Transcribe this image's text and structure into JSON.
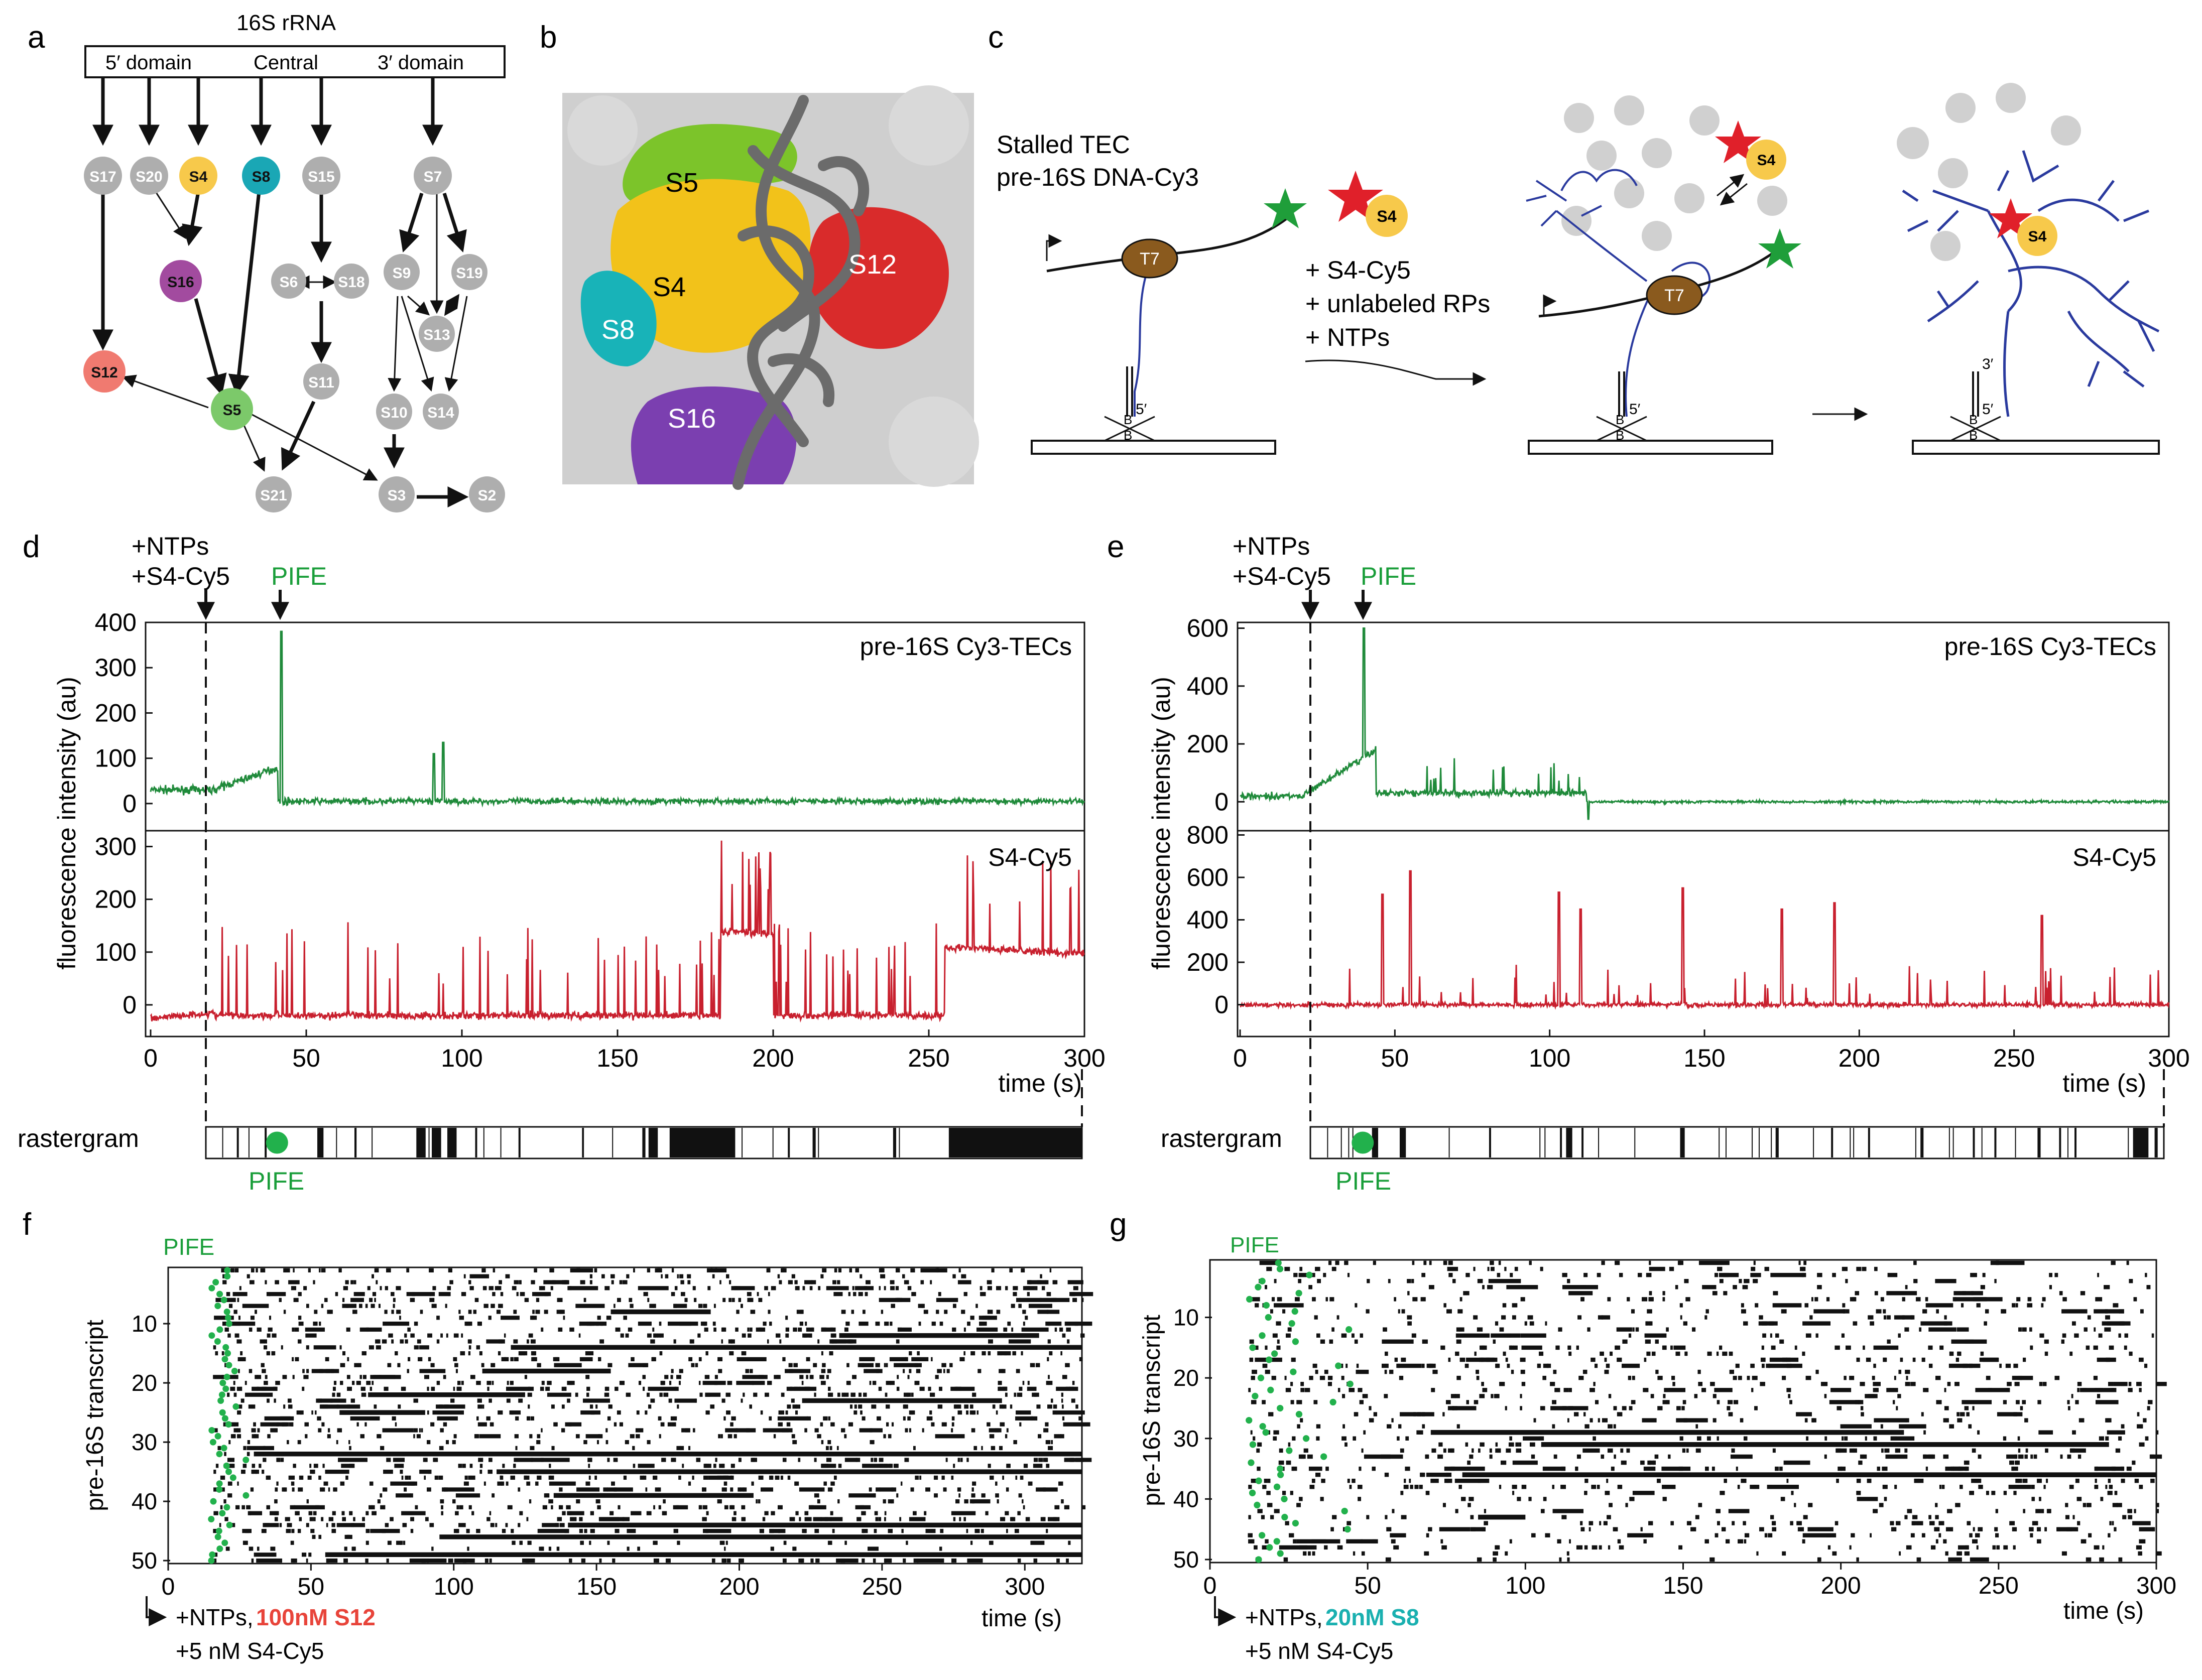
{
  "panel_letters": {
    "a": "a",
    "b": "b",
    "c": "c",
    "d": "d",
    "e": "e",
    "f": "f",
    "g": "g"
  },
  "panel_a": {
    "header": "16S rRNA",
    "domains": {
      "five": "5′ domain",
      "central": "Central",
      "three": "3′ domain"
    },
    "proteins": {
      "S17": "S17",
      "S20": "S20",
      "S4": "S4",
      "S8": "S8",
      "S15": "S15",
      "S7": "S7",
      "S16": "S16",
      "S6": "S6",
      "S18": "S18",
      "S9": "S9",
      "S19": "S19",
      "S13": "S13",
      "S12": "S12",
      "S5": "S5",
      "S11": "S11",
      "S10": "S10",
      "S14": "S14",
      "S21": "S21",
      "S3": "S3",
      "S2": "S2"
    },
    "colors": {
      "S4": "#f7c94b",
      "S8": "#1aa7b5",
      "S16": "#a24b9f",
      "S12": "#f07a70",
      "S5": "#7cc96a",
      "grey": "#aeaeae"
    }
  },
  "panel_b": {
    "labels": {
      "S5": "S5",
      "S4": "S4",
      "S8": "S8",
      "S12": "S12",
      "S16": "S16"
    },
    "colors": {
      "S5": "#7cc42a",
      "S4": "#f2c21a",
      "S8": "#18b3b8",
      "S12": "#d92b2b",
      "S16": "#7b3fb0",
      "rna": "#6b6b6b",
      "bg": "#cfcfcf"
    }
  },
  "panel_c": {
    "title1": "Stalled TEC",
    "title2": "pre-16S DNA-Cy3",
    "polymerase": "T7",
    "s4": "S4",
    "add1": "+ S4-Cy5",
    "add2": "+ unlabeled RPs",
    "add3": "+ NTPs",
    "five_prime": "5′",
    "three_prime": "3′",
    "biotin": "B",
    "colors": {
      "rna": "#2a3a9e",
      "star_green": "#1f9e3a",
      "star_red": "#e0202a",
      "polymerase": "#8a5a1e",
      "s4": "#f7c94b"
    }
  },
  "panel_d": {
    "arrow_label1": "+NTPs",
    "arrow_label2": "+S4-Cy5",
    "pife": "PIFE",
    "top_title": "pre-16S Cy3-TECs",
    "bottom_title": "S4-Cy5",
    "ylabel": "fluorescence intensity (au)",
    "xlabel": "time (s)",
    "raster_label": "rastergram",
    "top_yticks": [
      "400",
      "300",
      "200",
      "100",
      "0"
    ],
    "bottom_yticks": [
      "300",
      "200",
      "100",
      "0"
    ],
    "xticks": [
      "0",
      "50",
      "100",
      "150",
      "200",
      "250",
      "300"
    ]
  },
  "panel_e": {
    "arrow_label1": "+NTPs",
    "arrow_label2": "+S4-Cy5",
    "pife": "PIFE",
    "top_title": "pre-16S Cy3-TECs",
    "bottom_title": "S4-Cy5",
    "ylabel": "fluorescence intensity (au)",
    "xlabel": "time (s)",
    "raster_label": "rastergram",
    "top_yticks": [
      "600",
      "400",
      "200",
      "0"
    ],
    "bottom_yticks": [
      "800",
      "600",
      "400",
      "200",
      "0"
    ],
    "xticks": [
      "0",
      "50",
      "100",
      "150",
      "200",
      "250",
      "300"
    ]
  },
  "panel_f": {
    "pife": "PIFE",
    "ylabel": "pre-16S transcript",
    "xlabel": "time (s)",
    "yticks": [
      "10",
      "20",
      "30",
      "40",
      "50"
    ],
    "xticks": [
      "0",
      "50",
      "100",
      "150",
      "200",
      "250",
      "300"
    ],
    "legend1": "+NTPs,",
    "legend_highlight": "100nM S12",
    "legend2": "+5 nM S4-Cy5",
    "highlight_color": "#e8443a"
  },
  "panel_g": {
    "pife": "PIFE",
    "ylabel": "pre-16S transcript",
    "xlabel": "time (s)",
    "yticks": [
      "10",
      "20",
      "30",
      "40",
      "50"
    ],
    "xticks": [
      "0",
      "50",
      "100",
      "150",
      "200",
      "250",
      "300"
    ],
    "legend1": "+NTPs,",
    "legend_highlight": "20nM S8",
    "legend2": "+5 nM S4-Cy5",
    "highlight_color": "#1ab0b0"
  },
  "chart_data": [
    {
      "type": "line",
      "id": "d-top",
      "title": "pre-16S Cy3-TECs",
      "xlabel": "time (s)",
      "ylabel": "fluorescence intensity (au)",
      "xlim": [
        0,
        300
      ],
      "ylim": [
        -60,
        400
      ],
      "series": [
        {
          "name": "Cy3",
          "color": "#1f8a3a",
          "events": {
            "start_level": 30,
            "rise_to": 80,
            "rise_end": 41,
            "spike_at": 42,
            "spike_value": 380,
            "drop_to": 5,
            "small_spikes": [
              [
                91,
                110
              ],
              [
                94,
                135
              ]
            ],
            "noise": 14
          }
        }
      ]
    },
    {
      "type": "line",
      "id": "d-bottom",
      "title": "S4-Cy5",
      "xlabel": "time (s)",
      "ylabel": "fluorescence intensity (au)",
      "xlim": [
        0,
        300
      ],
      "ylim": [
        -60,
        330
      ],
      "series": [
        {
          "name": "Cy5",
          "color": "#c8202e",
          "events": {
            "base": -20,
            "plateaus": [
              [
                183,
                200,
                140
              ],
              [
                255,
                300,
                110
              ]
            ],
            "spike_max": 310,
            "noise": 12
          }
        }
      ]
    },
    {
      "type": "line",
      "id": "e-top",
      "title": "pre-16S Cy3-TECs",
      "xlabel": "time (s)",
      "ylabel": "fluorescence intensity (au)",
      "xlim": [
        0,
        300
      ],
      "ylim": [
        -100,
        620
      ],
      "series": [
        {
          "name": "Cy3",
          "color": "#1f8a3a",
          "events": {
            "start_level": 20,
            "rise_to": 180,
            "rise_end": 44,
            "spike_at": 40,
            "spike_value": 600,
            "drop_to": 30,
            "second_drop": 112,
            "final_level": 0,
            "noise": 20
          }
        }
      ]
    },
    {
      "type": "line",
      "id": "e-bottom",
      "title": "S4-Cy5",
      "xlabel": "time (s)",
      "ylabel": "fluorescence intensity (au)",
      "xlim": [
        0,
        300
      ],
      "ylim": [
        -150,
        820
      ],
      "series": [
        {
          "name": "Cy5",
          "color": "#c8202e",
          "events": {
            "base": 0,
            "spikes": [
              [
                46,
                520
              ],
              [
                55,
                630
              ],
              [
                103,
                530
              ],
              [
                110,
                450
              ],
              [
                143,
                550
              ],
              [
                175,
                450
              ],
              [
                192,
                480
              ],
              [
                259,
                420
              ]
            ],
            "noise": 18
          }
        }
      ]
    },
    {
      "type": "raster",
      "id": "d-raster",
      "xlim": [
        17,
        300
      ],
      "pife_at": 40,
      "blocks": [
        [
          27,
          27.5
        ],
        [
          36,
          36.4
        ],
        [
          53,
          55
        ],
        [
          65,
          65.6
        ],
        [
          85,
          88
        ],
        [
          90,
          93
        ],
        [
          95,
          98
        ],
        [
          104,
          104.5
        ],
        [
          118,
          118.6
        ],
        [
          158,
          159
        ],
        [
          160,
          163
        ],
        [
          167,
          188
        ],
        [
          205,
          205.5
        ],
        [
          213,
          214
        ],
        [
          239,
          240
        ],
        [
          257,
          300
        ]
      ]
    },
    {
      "type": "raster",
      "id": "e-raster",
      "xlim": [
        23,
        300
      ],
      "pife_at": 40,
      "blocks": [
        [
          43,
          45
        ],
        [
          52,
          54
        ],
        [
          81,
          81.5
        ],
        [
          104,
          104.6
        ],
        [
          106,
          108
        ],
        [
          111,
          111.5
        ],
        [
          143,
          144.5
        ],
        [
          174,
          175
        ],
        [
          192,
          192.5
        ],
        [
          204,
          204.5
        ],
        [
          221,
          222
        ],
        [
          238,
          238.5
        ],
        [
          245,
          245.5
        ],
        [
          259,
          260
        ],
        [
          266,
          266.5
        ],
        [
          271,
          271.5
        ],
        [
          290,
          295
        ],
        [
          297,
          298
        ]
      ]
    },
    {
      "type": "scatter",
      "id": "f-raster",
      "xlabel": "time (s)",
      "ylabel": "pre-16S transcript",
      "xlim": [
        0,
        320
      ],
      "ylim": [
        50,
        1
      ],
      "rows": 50,
      "pife_range": [
        15,
        28
      ],
      "long_rows": [
        [
          14,
          120,
          320
        ],
        [
          22,
          70,
          125
        ],
        [
          32,
          30,
          320
        ],
        [
          35,
          115,
          330
        ],
        [
          46,
          95,
          330
        ],
        [
          49,
          55,
          330
        ],
        [
          44,
          140,
          320
        ],
        [
          18,
          110,
          155
        ],
        [
          23,
          222,
          292
        ],
        [
          12,
          235,
          305
        ],
        [
          8,
          155,
          190
        ],
        [
          39,
          135,
          205
        ],
        [
          25,
          60,
          90
        ]
      ],
      "legend": "+NTPs, 100nM S12, +5 nM S4-Cy5"
    },
    {
      "type": "scatter",
      "id": "g-raster",
      "xlabel": "time (s)",
      "ylabel": "pre-16S transcript",
      "xlim": [
        0,
        300
      ],
      "ylim": [
        50,
        1
      ],
      "rows": 50,
      "pife_range": [
        12,
        45
      ],
      "long_rows": [
        [
          29,
          70,
          220
        ],
        [
          31,
          105,
          285
        ],
        [
          36,
          80,
          300
        ],
        [
          43,
          85,
          100
        ]
      ],
      "legend": "+NTPs, 20nM S8, +5 nM S4-Cy5"
    }
  ]
}
